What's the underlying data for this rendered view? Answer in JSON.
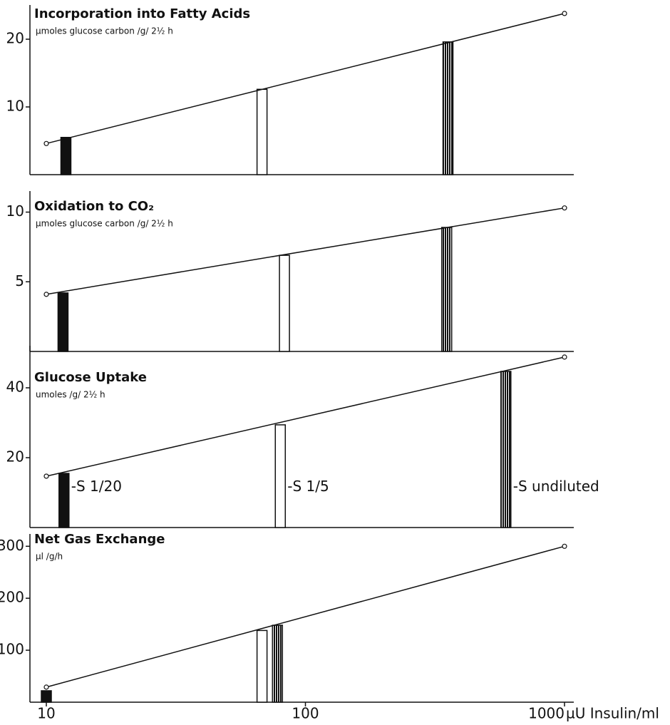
{
  "chart_data": [
    {
      "type": "bar",
      "title": "Incorporation into Fatty Acids",
      "subtitle": "µmoles glucose carbon /g/ 2½ h",
      "x": [
        11.9,
        68,
        355
      ],
      "values": [
        5.5,
        12.6,
        19.6
      ],
      "bar_styles": [
        "solid",
        "open",
        "hatched"
      ],
      "line": {
        "x": [
          10,
          1000
        ],
        "values": [
          4.6,
          23.8
        ]
      },
      "xlim": [
        10,
        1000
      ],
      "ylim": [
        0,
        24
      ],
      "yticks": [
        10,
        20
      ],
      "xscale": "log"
    },
    {
      "type": "bar",
      "title": "Oxidation to CO₂",
      "subtitle": "µmoles glucose carbon /g/ 2½ h",
      "x": [
        11.6,
        83,
        351
      ],
      "values": [
        4.2,
        6.9,
        8.9
      ],
      "bar_styles": [
        "solid",
        "open",
        "hatched"
      ],
      "line": {
        "x": [
          10,
          1000
        ],
        "values": [
          4.1,
          10.3
        ]
      },
      "xlim": [
        10,
        1000
      ],
      "ylim": [
        0,
        11
      ],
      "yticks": [
        5,
        10
      ],
      "xscale": "log"
    },
    {
      "type": "bar",
      "title": "Glucose Uptake",
      "subtitle": "umoles /g/ 2½ h",
      "x": [
        11.7,
        80,
        594
      ],
      "values": [
        15.5,
        29.4,
        44.7
      ],
      "bar_styles": [
        "solid",
        "open",
        "hatched"
      ],
      "bar_labels": [
        "-S 1/20",
        "-S 1/5",
        "-S undiluted"
      ],
      "line": {
        "x": [
          10,
          1000
        ],
        "values": [
          14.7,
          48.8
        ]
      },
      "xlim": [
        10,
        1000
      ],
      "ylim": [
        0,
        50
      ],
      "yticks": [
        20,
        40
      ],
      "xscale": "log"
    },
    {
      "type": "bar",
      "title": "Net Gas Exchange",
      "subtitle": "µl /g/h",
      "x": [
        10,
        68,
        78
      ],
      "values": [
        22,
        138,
        148
      ],
      "bar_styles": [
        "solid",
        "open",
        "hatched"
      ],
      "line": {
        "x": [
          10,
          1000
        ],
        "values": [
          29,
          300
        ]
      },
      "xlim": [
        10,
        1000
      ],
      "ylim": [
        0,
        310
      ],
      "yticks": [
        100,
        200,
        300
      ],
      "xscale": "log",
      "xticks": [
        10,
        100,
        1000
      ],
      "xlabel": "µU Insulin/ml"
    }
  ]
}
